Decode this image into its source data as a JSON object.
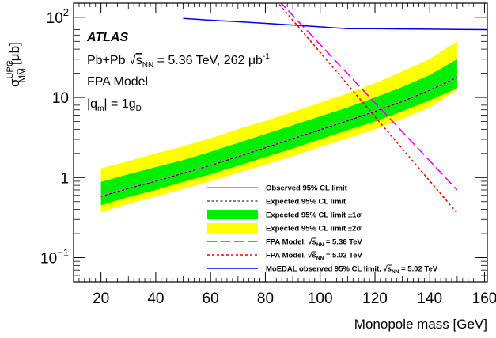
{
  "chart_data": {
    "type": "line",
    "xlabel": "Monopole mass [GeV]",
    "ylabel": {
      "prefix": "σ",
      "sup": "UPC",
      "sub": "MM̅",
      "suffix": "[μb]"
    },
    "xlim": [
      10,
      161
    ],
    "ylim": [
      0.05,
      150
    ],
    "yscale": "log",
    "x_ticks": [
      20,
      40,
      60,
      80,
      100,
      120,
      140,
      160
    ],
    "y_ticks": [
      {
        "value": 0.1,
        "base": "10",
        "exp": "−1"
      },
      {
        "value": 1,
        "label": "1"
      },
      {
        "value": 10,
        "label": "10"
      },
      {
        "value": 100,
        "base": "10",
        "exp": "2"
      }
    ],
    "annotations": {
      "experiment": "ATLAS",
      "line1_a": "Pb+Pb ",
      "line1_sqrt": "s",
      "line1_sub": "NN",
      "line1_b": " = 5.36 TeV, 262 μb",
      "line1_sup": "-1",
      "line2": "FPA Model",
      "line3_a": "|q",
      "line3_sub1": "m",
      "line3_b": "| = 1g",
      "line3_sub2": "D"
    },
    "legend_position": "bottom-right",
    "legend": [
      {
        "key": "observed",
        "text": "Observed 95% CL limit"
      },
      {
        "key": "expected",
        "text": "Expected 95% CL limit"
      },
      {
        "key": "band1",
        "text": "Expected 95% CL limit ±1σ"
      },
      {
        "key": "band2",
        "text": "Expected 95% CL limit ±2σ"
      },
      {
        "key": "fpa536",
        "text": "FPA Model, ",
        "sqrt": "s",
        "sub": "NN",
        "tail": " = 5.36 TeV"
      },
      {
        "key": "fpa502",
        "text": "FPA Model, ",
        "sqrt": "s",
        "sub": "NN",
        "tail": " = 5.02 TeV"
      },
      {
        "key": "moedal",
        "text": "MoEDAL observed 95% CL limit, ",
        "sqrt": "s",
        "sub": "NN",
        "tail": " = 5.02 TeV"
      }
    ],
    "colors": {
      "observed": "#999999",
      "expected": "#000000",
      "band1": "#00ee00",
      "band2": "#ffff00",
      "fpa536": "#ee00ee",
      "fpa502": "#ee0000",
      "moedal": "#0000ee"
    },
    "series": [
      {
        "name": "Observed 95% CL limit",
        "x": [
          20,
          30,
          40,
          50,
          60,
          70,
          80,
          90,
          100,
          110,
          120,
          130,
          140,
          150
        ],
        "y": [
          0.6,
          0.75,
          0.92,
          1.15,
          1.45,
          1.85,
          2.4,
          3.1,
          4.0,
          5.2,
          6.8,
          9.0,
          12.5,
          18.0
        ]
      },
      {
        "name": "Expected 95% CL limit",
        "x": [
          20,
          30,
          40,
          50,
          60,
          70,
          80,
          90,
          100,
          110,
          120,
          130,
          140,
          150
        ],
        "y": [
          0.58,
          0.73,
          0.9,
          1.13,
          1.42,
          1.82,
          2.35,
          3.05,
          3.95,
          5.1,
          6.7,
          8.9,
          12.3,
          17.8
        ]
      },
      {
        "name": "Expected 95% CL limit ±1σ",
        "x": [
          20,
          30,
          40,
          50,
          60,
          70,
          80,
          90,
          100,
          110,
          120,
          130,
          140,
          150
        ],
        "lower": [
          0.45,
          0.57,
          0.7,
          0.88,
          1.1,
          1.4,
          1.8,
          2.3,
          3.0,
          3.9,
          5.0,
          6.7,
          9.2,
          13.0
        ],
        "upper": [
          0.88,
          1.1,
          1.35,
          1.65,
          2.1,
          2.7,
          3.5,
          4.5,
          5.8,
          7.5,
          10.0,
          13.5,
          19.0,
          30.0
        ]
      },
      {
        "name": "Expected 95% CL limit ±2σ",
        "x": [
          20,
          30,
          40,
          50,
          60,
          70,
          80,
          90,
          100,
          110,
          120,
          130,
          140,
          150
        ],
        "lower": [
          0.37,
          0.47,
          0.58,
          0.72,
          0.9,
          1.15,
          1.45,
          1.85,
          2.4,
          3.1,
          4.0,
          5.4,
          7.5,
          12.5
        ],
        "upper": [
          1.3,
          1.6,
          2.0,
          2.45,
          3.1,
          4.0,
          5.1,
          6.6,
          8.6,
          11.3,
          15.0,
          21.0,
          30.0,
          50.0
        ]
      },
      {
        "name": "FPA Model, √sNN = 5.36 TeV",
        "x": [
          85,
          150
        ],
        "y": [
          160,
          0.7
        ]
      },
      {
        "name": "FPA Model, √sNN = 5.02 TeV",
        "x": [
          84,
          150
        ],
        "y": [
          160,
          0.36
        ]
      },
      {
        "name": "MoEDAL observed 95% CL limit, √sNN = 5.02 TeV",
        "x": [
          50,
          60,
          70,
          80,
          90,
          100,
          105,
          110,
          120,
          130,
          140,
          150,
          161
        ],
        "y": [
          97,
          92,
          88,
          84,
          80,
          76,
          74,
          72,
          72,
          71.5,
          71,
          70.5,
          70
        ]
      }
    ]
  }
}
